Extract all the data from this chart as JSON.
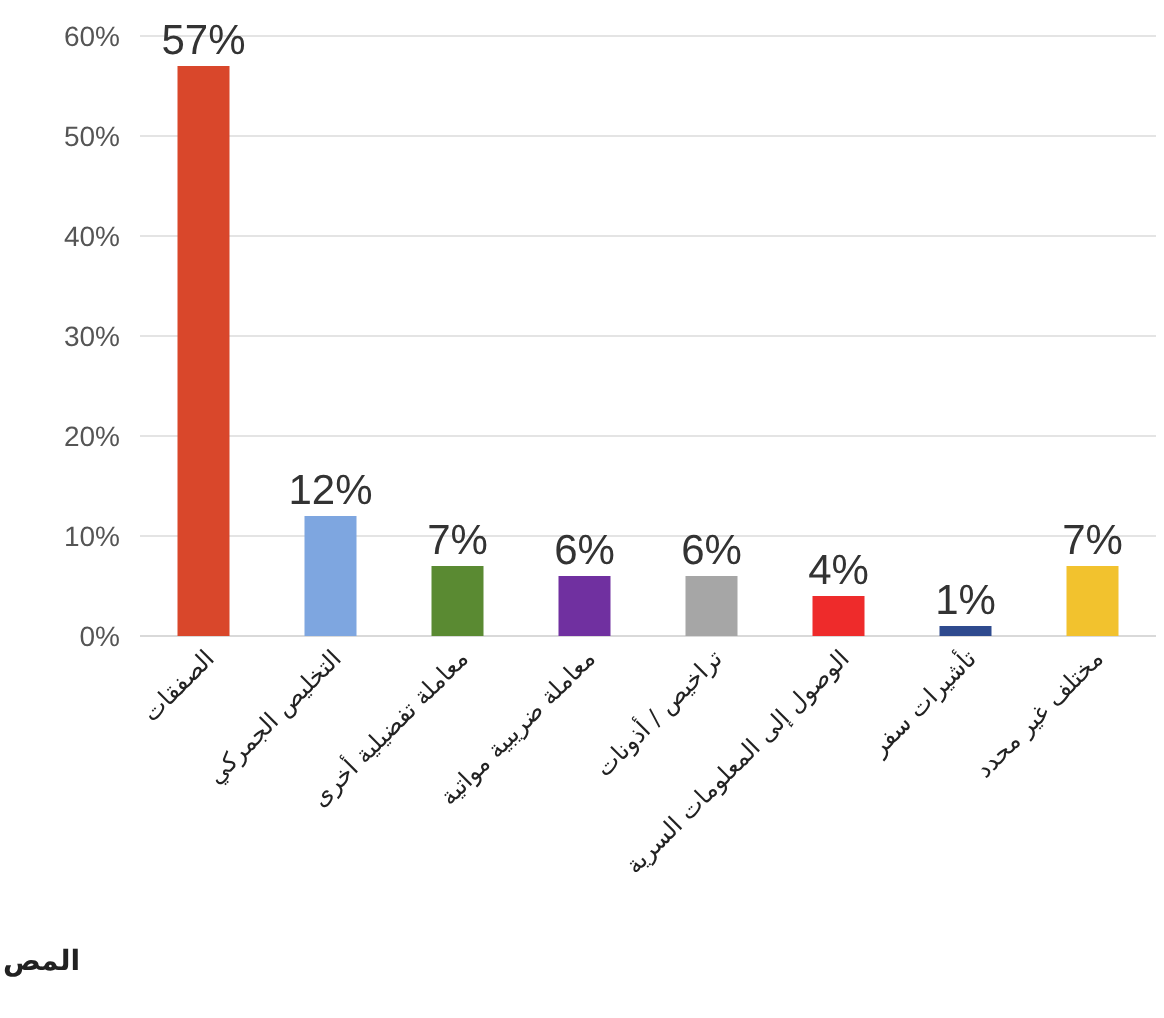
{
  "chart_data": {
    "type": "bar",
    "categories": [
      "الصفقات",
      "التخليص الجمركي",
      "معاملة تفضيلية أخرى",
      "معاملة ضريبية مواتية",
      "تراخيص / أذونات",
      "الوصول إلى المعلومات السرية",
      "تأشيرات سفر",
      "مختلف غير محدد"
    ],
    "values": [
      57,
      12,
      7,
      6,
      6,
      4,
      1,
      7
    ],
    "colors": [
      "#d9472b",
      "#7ea6e0",
      "#5a8a32",
      "#7030a0",
      "#a6a6a6",
      "#ee2b2b",
      "#2e4a8e",
      "#f2c22e"
    ],
    "value_labels": [
      "57%",
      "12%",
      "7%",
      "6%",
      "6%",
      "4%",
      "1%",
      "7%"
    ],
    "ylim": [
      0,
      60
    ],
    "yticks": [
      {
        "value": 0,
        "label": "0%"
      },
      {
        "value": 10,
        "label": "10%"
      },
      {
        "value": 20,
        "label": "20%"
      },
      {
        "value": 30,
        "label": "30%"
      },
      {
        "value": 40,
        "label": "40%"
      },
      {
        "value": 50,
        "label": "50%"
      },
      {
        "value": 60,
        "label": "60%"
      }
    ],
    "grid": "y",
    "annotations": [
      "المص"
    ]
  }
}
